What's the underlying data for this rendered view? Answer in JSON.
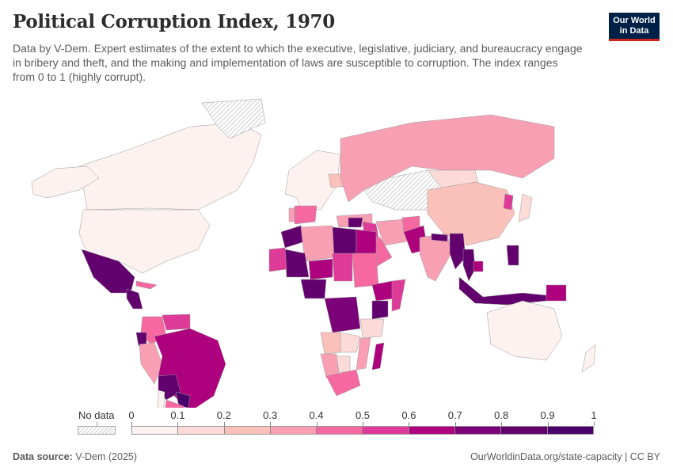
{
  "header": {
    "title": "Political Corruption Index, 1970",
    "subtitle": "Data by V-Dem. Expert estimates of the extent to which the executive, legislative, judiciary, and bureaucracy engage in bribery and theft, and the making and implementation of laws are susceptible to corruption. The index ranges from 0 to 1 (highly corrupt).",
    "logo_line1": "Our World",
    "logo_line2": "in Data"
  },
  "legend": {
    "no_data_label": "No data",
    "bins": [
      {
        "from": 0.0,
        "to": 0.1,
        "color": "#fdf2ef"
      },
      {
        "from": 0.1,
        "to": 0.2,
        "color": "#fcdad8"
      },
      {
        "from": 0.2,
        "to": 0.3,
        "color": "#fac1bb"
      },
      {
        "from": 0.3,
        "to": 0.4,
        "color": "#f99fb4"
      },
      {
        "from": 0.4,
        "to": 0.5,
        "color": "#f568a0"
      },
      {
        "from": 0.5,
        "to": 0.6,
        "color": "#de3b98"
      },
      {
        "from": 0.6,
        "to": 0.7,
        "color": "#ae017e"
      },
      {
        "from": 0.7,
        "to": 0.8,
        "color": "#7a0177"
      },
      {
        "from": 0.8,
        "to": 0.9,
        "color": "#62006d"
      },
      {
        "from": 0.9,
        "to": 1.0,
        "color": "#49006a"
      }
    ],
    "ticks": [
      "0",
      "0.1",
      "0.2",
      "0.3",
      "0.4",
      "0.5",
      "0.6",
      "0.7",
      "0.8",
      "0.9",
      "1"
    ]
  },
  "footer": {
    "source_label": "Data source:",
    "source_value": "V-Dem (2025)",
    "url": "OurWorldinData.org/state-capacity | CC BY"
  },
  "chart_data": {
    "type": "choropleth",
    "title": "Political Corruption Index, 1970",
    "year": 1970,
    "value_range": [
      0,
      1
    ],
    "no_data_color": "hatched-grey",
    "regions": [
      {
        "name": "Canada",
        "value": 0.05
      },
      {
        "name": "United States",
        "value": 0.05
      },
      {
        "name": "Alaska",
        "value": 0.05
      },
      {
        "name": "Greenland",
        "value": null
      },
      {
        "name": "Mexico",
        "value": 0.85
      },
      {
        "name": "Central America",
        "value": 0.85
      },
      {
        "name": "Cuba",
        "value": 0.45
      },
      {
        "name": "Colombia",
        "value": 0.45
      },
      {
        "name": "Venezuela",
        "value": 0.55
      },
      {
        "name": "Ecuador",
        "value": 0.85
      },
      {
        "name": "Peru",
        "value": 0.35
      },
      {
        "name": "Brazil",
        "value": 0.65
      },
      {
        "name": "Bolivia",
        "value": 0.85
      },
      {
        "name": "Paraguay",
        "value": 0.95
      },
      {
        "name": "Uruguay",
        "value": 0.15
      },
      {
        "name": "Argentina",
        "value": 0.45
      },
      {
        "name": "Chile",
        "value": 0.05
      },
      {
        "name": "Western Europe",
        "value": 0.05
      },
      {
        "name": "Spain",
        "value": 0.45
      },
      {
        "name": "Portugal",
        "value": 0.35
      },
      {
        "name": "Poland",
        "value": 0.25
      },
      {
        "name": "Soviet Union",
        "value": 0.35
      },
      {
        "name": "Central Asia",
        "value": null
      },
      {
        "name": "Mongolia",
        "value": 0.15
      },
      {
        "name": "China",
        "value": 0.25
      },
      {
        "name": "Japan",
        "value": 0.15
      },
      {
        "name": "North Korea",
        "value": 0.55
      },
      {
        "name": "Turkey",
        "value": 0.35
      },
      {
        "name": "Iran",
        "value": 0.35
      },
      {
        "name": "Afghanistan",
        "value": 0.45
      },
      {
        "name": "Pakistan",
        "value": 0.65
      },
      {
        "name": "India",
        "value": 0.35
      },
      {
        "name": "Nepal",
        "value": 0.85
      },
      {
        "name": "Saudi Arabia",
        "value": 0.45
      },
      {
        "name": "Syria",
        "value": 0.85
      },
      {
        "name": "Iraq",
        "value": 0.55
      },
      {
        "name": "Myanmar",
        "value": 0.85
      },
      {
        "name": "Thailand",
        "value": 0.85
      },
      {
        "name": "Cambodia",
        "value": 0.65
      },
      {
        "name": "Indonesia",
        "value": 0.85
      },
      {
        "name": "Philippines",
        "value": 0.85
      },
      {
        "name": "Papua New Guinea",
        "value": 0.65
      },
      {
        "name": "Australia",
        "value": 0.05
      },
      {
        "name": "New Zealand",
        "value": 0.05
      },
      {
        "name": "Morocco",
        "value": 0.85
      },
      {
        "name": "Algeria",
        "value": 0.35
      },
      {
        "name": "Libya",
        "value": 0.85
      },
      {
        "name": "Egypt",
        "value": 0.65
      },
      {
        "name": "Mali",
        "value": 0.85
      },
      {
        "name": "Mauritania",
        "value": 0.55
      },
      {
        "name": "Niger",
        "value": 0.65
      },
      {
        "name": "Nigeria",
        "value": 0.85
      },
      {
        "name": "Chad",
        "value": 0.55
      },
      {
        "name": "Sudan",
        "value": 0.45
      },
      {
        "name": "Ethiopia",
        "value": 0.65
      },
      {
        "name": "Somalia",
        "value": 0.55
      },
      {
        "name": "DR Congo",
        "value": 0.75
      },
      {
        "name": "Kenya",
        "value": 0.85
      },
      {
        "name": "Tanzania",
        "value": 0.15
      },
      {
        "name": "Angola",
        "value": 0.25
      },
      {
        "name": "Zambia",
        "value": 0.15
      },
      {
        "name": "Namibia",
        "value": 0.35
      },
      {
        "name": "Botswana",
        "value": 0.15
      },
      {
        "name": "Mozambique",
        "value": 0.35
      },
      {
        "name": "South Africa",
        "value": 0.45
      },
      {
        "name": "Madagascar",
        "value": 0.65
      }
    ]
  }
}
